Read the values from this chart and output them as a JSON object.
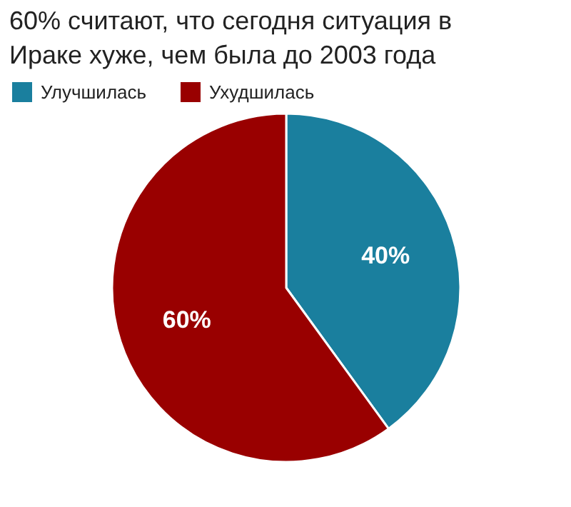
{
  "chart_data": {
    "type": "pie",
    "title": "60% считают, что сегодня ситуация в Ираке хуже, чем была до 2003 года",
    "categories": [
      "Улучшилась",
      "Ухудшилась"
    ],
    "values": [
      40,
      60
    ],
    "colors": [
      "#1a7f9e",
      "#990000"
    ],
    "value_labels": [
      "40%",
      "60%"
    ],
    "legend": "top left"
  }
}
